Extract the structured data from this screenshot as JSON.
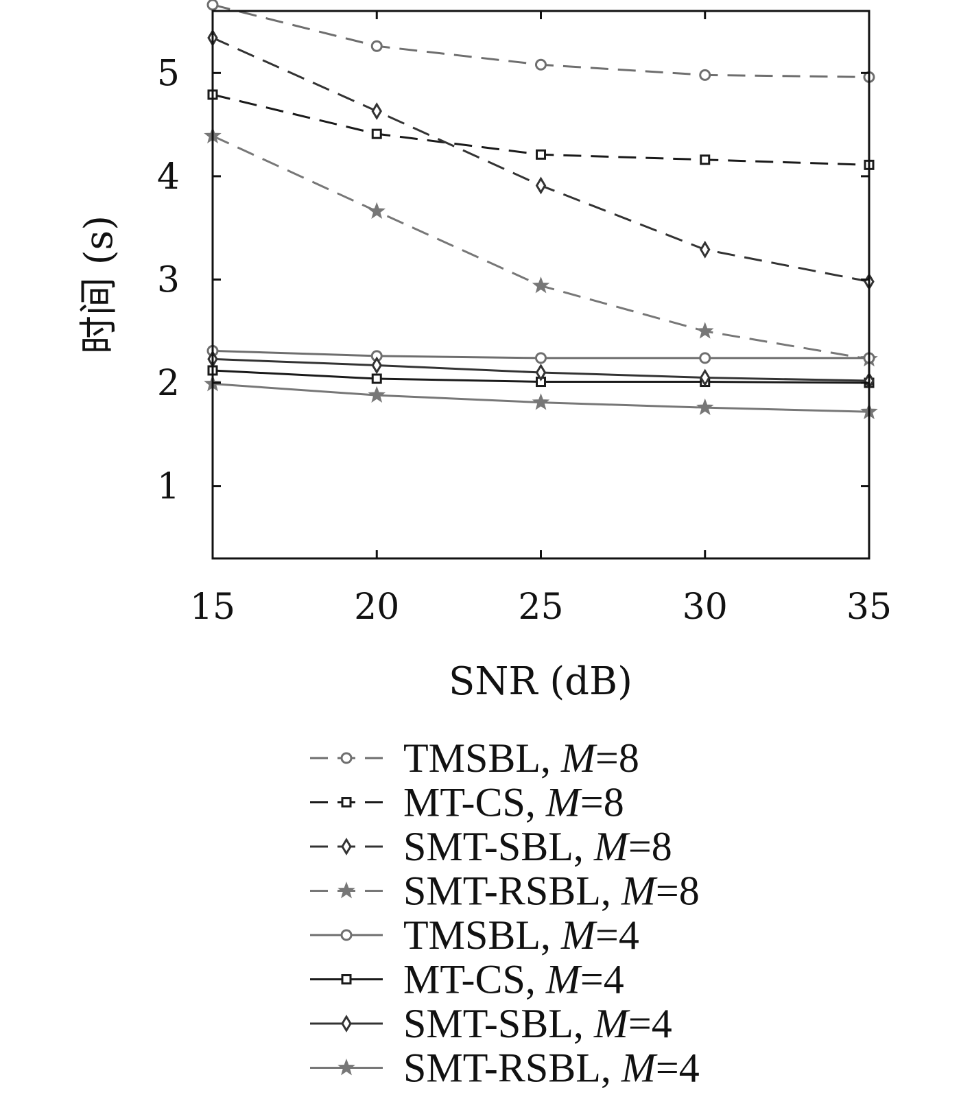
{
  "chart_data": {
    "type": "line",
    "title": "",
    "xlabel": "SNR (dB)",
    "ylabel": "时间 (s)",
    "x": [
      15,
      20,
      25,
      30,
      35
    ],
    "xlim": [
      15,
      35
    ],
    "ylim": [
      0.3,
      5.6
    ],
    "xticks": [
      "15",
      "20",
      "25",
      "30",
      "35"
    ],
    "yticks": [
      "1",
      "2",
      "3",
      "4",
      "5"
    ],
    "grid": false,
    "legend_position": "below",
    "series": [
      {
        "name": "TMSBL, M=8",
        "label_main": "TMSBL, ",
        "label_var": "M",
        "label_eq": "=8",
        "values": [
          5.66,
          5.26,
          5.08,
          4.98,
          4.96
        ],
        "color": "#6e6e6e",
        "dash": "dashed",
        "marker": "circle"
      },
      {
        "name": "MT-CS, M=8",
        "label_main": "MT-CS, ",
        "label_var": "M",
        "label_eq": "=8",
        "values": [
          4.79,
          4.41,
          4.21,
          4.16,
          4.11
        ],
        "color": "#1a1a1a",
        "dash": "dashed",
        "marker": "square"
      },
      {
        "name": "SMT-SBL, M=8",
        "label_main": "SMT-SBL, ",
        "label_var": "M",
        "label_eq": "=8",
        "values": [
          5.34,
          4.63,
          3.91,
          3.29,
          2.98
        ],
        "color": "#333333",
        "dash": "dashed",
        "marker": "diamond"
      },
      {
        "name": "SMT-RSBL, M=8",
        "label_main": "SMT-RSBL, ",
        "label_var": "M",
        "label_eq": "=8",
        "values": [
          4.39,
          3.66,
          2.94,
          2.5,
          2.23
        ],
        "color": "#777777",
        "dash": "dashed",
        "marker": "star"
      },
      {
        "name": "TMSBL, M=4",
        "label_main": "TMSBL, ",
        "label_var": "M",
        "label_eq": "=4",
        "values": [
          2.31,
          2.26,
          2.24,
          2.24,
          2.24
        ],
        "color": "#6e6e6e",
        "dash": "solid",
        "marker": "circle"
      },
      {
        "name": "MT-CS, M=4",
        "label_main": "MT-CS, ",
        "label_var": "M",
        "label_eq": "=4",
        "values": [
          2.12,
          2.04,
          2.01,
          2.01,
          2.0
        ],
        "color": "#1a1a1a",
        "dash": "solid",
        "marker": "square"
      },
      {
        "name": "SMT-SBL, M=4",
        "label_main": "SMT-SBL, ",
        "label_var": "M",
        "label_eq": "=4",
        "values": [
          2.23,
          2.17,
          2.1,
          2.05,
          2.02
        ],
        "color": "#333333",
        "dash": "solid",
        "marker": "diamond"
      },
      {
        "name": "SMT-RSBL, M=4",
        "label_main": "SMT-RSBL, ",
        "label_var": "M",
        "label_eq": "=4",
        "values": [
          1.99,
          1.88,
          1.81,
          1.76,
          1.72
        ],
        "color": "#777777",
        "dash": "solid",
        "marker": "star"
      }
    ]
  }
}
